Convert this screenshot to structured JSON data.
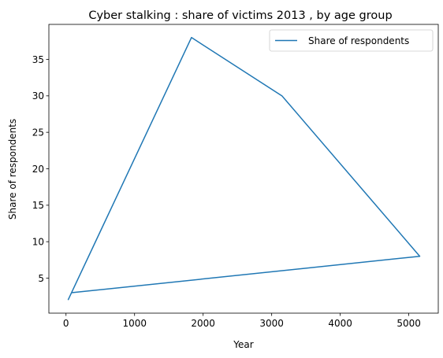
{
  "chart_data": {
    "type": "line",
    "title": "Cyber stalking : share of victims 2013 , by age group",
    "xlabel": "Year",
    "ylabel": "Share of respondents",
    "xlim": [
      -250,
      5430
    ],
    "ylim": [
      0.2,
      39.8
    ],
    "x_ticks": [
      0,
      1000,
      2000,
      3000,
      4000,
      5000
    ],
    "y_ticks": [
      5,
      10,
      15,
      20,
      25,
      30,
      35
    ],
    "grid": false,
    "legend_position": "top-right",
    "series": [
      {
        "name": "Share of respondents",
        "color": "#1f77b4",
        "points": [
          {
            "x": 30,
            "y": 2
          },
          {
            "x": 1830,
            "y": 38
          },
          {
            "x": 3150,
            "y": 30
          },
          {
            "x": 5160,
            "y": 8
          },
          {
            "x": 80,
            "y": 3
          }
        ]
      }
    ]
  }
}
